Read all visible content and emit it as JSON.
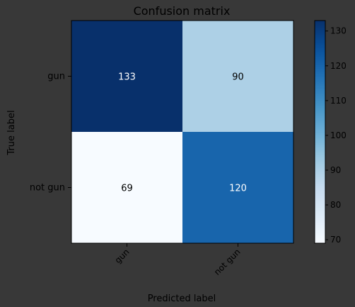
{
  "chart_data": {
    "type": "heatmap",
    "title": "Confusion matrix",
    "xlabel": "Predicted label",
    "ylabel": "True label",
    "x_categories": [
      "gun",
      "not gun"
    ],
    "y_categories": [
      "gun",
      "not gun"
    ],
    "values": [
      [
        133,
        90
      ],
      [
        69,
        120
      ]
    ],
    "colormap": "Blues",
    "colorbar_range": [
      69,
      133
    ],
    "colorbar_ticks": [
      70,
      80,
      90,
      100,
      110,
      120,
      130
    ],
    "x_tick_rotation_deg": 45
  },
  "colors": {
    "background": "#383838",
    "text": "#000000",
    "axis": "#000000",
    "cell_text_dark": "#ffffff",
    "cell_text_light": "#000000"
  }
}
